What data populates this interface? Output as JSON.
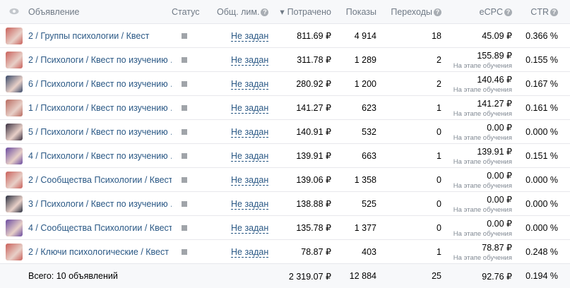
{
  "headers": {
    "name": "Объявление",
    "status": "Статус",
    "limit": "Общ. лим.",
    "spent": "Потрачено",
    "impressions": "Показы",
    "clicks": "Переходы",
    "ecpc": "eCPC",
    "ctr": "CTR"
  },
  "help_glyph": "?",
  "sort_icon": "▾",
  "thumb_colors": [
    "#c9605a",
    "#c9605a",
    "#3a4a6a",
    "#b86a60",
    "#3a3040",
    "#6a4aa0",
    "#c9605a",
    "#2a3040",
    "#6a4aa0",
    "#c9605a"
  ],
  "rows": [
    {
      "name": "2 / Группы психологии / Квест",
      "limit": "Не задан",
      "spent": "811.69 ₽",
      "impressions": "4 914",
      "clicks": "18",
      "ecpc": "45.09 ₽",
      "ecpc_note": "",
      "ctr": "0.366 %"
    },
    {
      "name": "2 / Психологи / Квест по изучению ...",
      "limit": "Не задан",
      "spent": "311.78 ₽",
      "impressions": "1 289",
      "clicks": "2",
      "ecpc": "155.89 ₽",
      "ecpc_note": "На этапе обучения",
      "ctr": "0.155 %"
    },
    {
      "name": "6 / Психологи / Квест по изучению ...",
      "limit": "Не задан",
      "spent": "280.92 ₽",
      "impressions": "1 200",
      "clicks": "2",
      "ecpc": "140.46 ₽",
      "ecpc_note": "На этапе обучения",
      "ctr": "0.167 %"
    },
    {
      "name": "1 / Психологи / Квест по изучению ...",
      "limit": "Не задан",
      "spent": "141.27 ₽",
      "impressions": "623",
      "clicks": "1",
      "ecpc": "141.27 ₽",
      "ecpc_note": "На этапе обучения",
      "ctr": "0.161 %"
    },
    {
      "name": "5 / Психологи / Квест по изучению ...",
      "limit": "Не задан",
      "spent": "140.91 ₽",
      "impressions": "532",
      "clicks": "0",
      "ecpc": "0.00 ₽",
      "ecpc_note": "На этапе обучения",
      "ctr": "0.000 %"
    },
    {
      "name": "4 / Психологи / Квест по изучению ...",
      "limit": "Не задан",
      "spent": "139.91 ₽",
      "impressions": "663",
      "clicks": "1",
      "ecpc": "139.91 ₽",
      "ecpc_note": "На этапе обучения",
      "ctr": "0.151 %"
    },
    {
      "name": "2 / Сообщества Психологии / Квест...",
      "limit": "Не задан",
      "spent": "139.06 ₽",
      "impressions": "1 358",
      "clicks": "0",
      "ecpc": "0.00 ₽",
      "ecpc_note": "На этапе обучения",
      "ctr": "0.000 %"
    },
    {
      "name": "3 / Психологи / Квест по изучению ...",
      "limit": "Не задан",
      "spent": "138.88 ₽",
      "impressions": "525",
      "clicks": "0",
      "ecpc": "0.00 ₽",
      "ecpc_note": "На этапе обучения",
      "ctr": "0.000 %"
    },
    {
      "name": "4 / Сообщества Психологии / Квест...",
      "limit": "Не задан",
      "spent": "135.78 ₽",
      "impressions": "1 377",
      "clicks": "0",
      "ecpc": "0.00 ₽",
      "ecpc_note": "На этапе обучения",
      "ctr": "0.000 %"
    },
    {
      "name": "2 / Ключи психологические / Квест",
      "limit": "Не задан",
      "spent": "78.87 ₽",
      "impressions": "403",
      "clicks": "1",
      "ecpc": "78.87 ₽",
      "ecpc_note": "На этапе обучения",
      "ctr": "0.248 %"
    }
  ],
  "totals": {
    "label": "Всего: 10 объявлений",
    "spent": "2 319.07 ₽",
    "impressions": "12 884",
    "clicks": "25",
    "ecpc": "92.76 ₽",
    "ctr": "0.194 %"
  }
}
